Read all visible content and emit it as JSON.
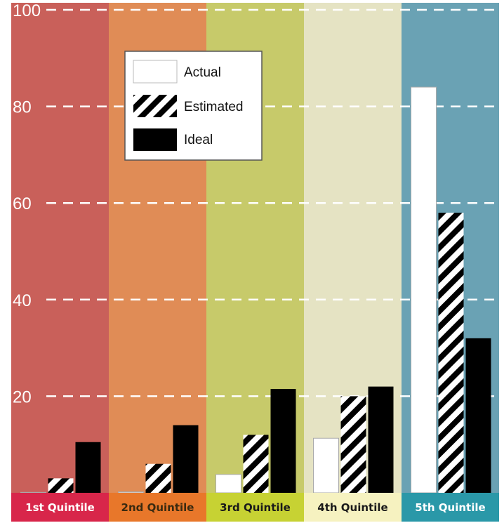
{
  "chart_data": {
    "type": "bar",
    "title": "",
    "xlabel": "",
    "ylabel": "",
    "ylim": [
      0,
      100
    ],
    "yticks": [
      20,
      40,
      60,
      80,
      100
    ],
    "grid": true,
    "legend_position": "top-center",
    "categories": [
      "1st  Quintile",
      "2nd Quintile",
      "3rd Quintile",
      "4th Quintile",
      "5th Quintile"
    ],
    "category_colors": {
      "background": [
        "#c9605a",
        "#e08c56",
        "#c7ca6a",
        "#e5e3c3",
        "#6aa2b4"
      ],
      "label_strip": [
        "#d8264a",
        "#e8772a",
        "#c7d233",
        "#f6f2c0",
        "#2a98a8"
      ],
      "label_text": [
        "#ffffff",
        "#3a2a10",
        "#1a1a1a",
        "#1a1a1a",
        "#ffffff"
      ]
    },
    "series": [
      {
        "name": "Actual",
        "pattern": "white",
        "values": [
          0.1,
          0.2,
          3.8,
          11.3,
          84.0
        ]
      },
      {
        "name": "Estimated",
        "pattern": "hatched",
        "values": [
          3.0,
          6.0,
          12.0,
          20.0,
          58.0
        ]
      },
      {
        "name": "Ideal",
        "pattern": "black",
        "values": [
          10.5,
          14.0,
          21.5,
          22.0,
          32.0
        ]
      }
    ]
  }
}
